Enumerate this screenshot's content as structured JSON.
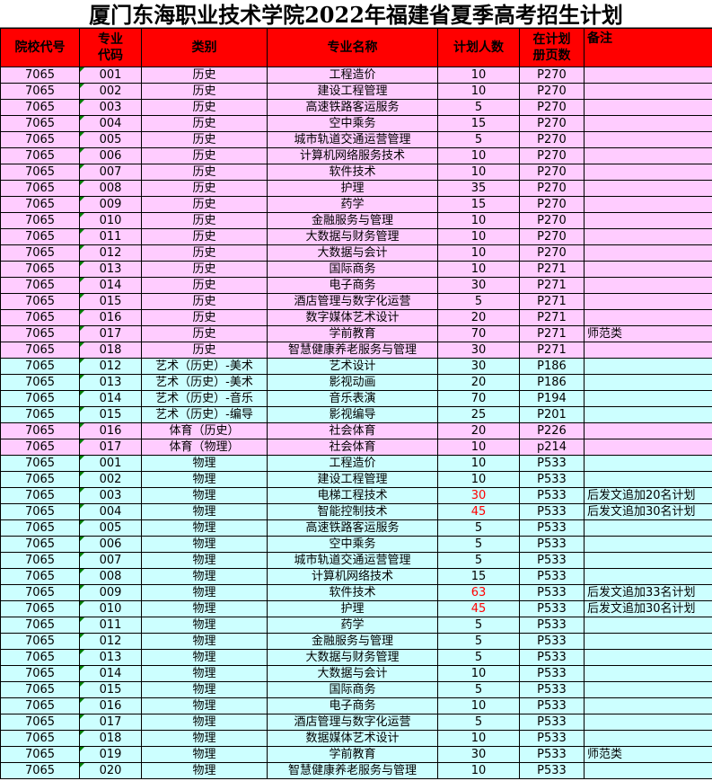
{
  "title": "厦门东海职业技术学院2022年福建省夏季高考招生计划",
  "headers": [
    "院校代号",
    "专业代码",
    "类别",
    "专业名称",
    "计划人数",
    "在计划册页数",
    "备注"
  ],
  "colors": {
    "header": "#ff0000",
    "pink": "#ffccff",
    "cyan": "#ccffff",
    "highlight_text": "#ff0000"
  },
  "rows": [
    [
      "7065",
      "001",
      "历史",
      "工程造价",
      "10",
      "P270",
      "",
      "pink",
      false
    ],
    [
      "7065",
      "002",
      "历史",
      "建设工程管理",
      "10",
      "P270",
      "",
      "pink",
      false
    ],
    [
      "7065",
      "003",
      "历史",
      "高速铁路客运服务",
      "5",
      "P270",
      "",
      "pink",
      false
    ],
    [
      "7065",
      "004",
      "历史",
      "空中乘务",
      "15",
      "P270",
      "",
      "pink",
      false
    ],
    [
      "7065",
      "005",
      "历史",
      "城市轨道交通运营管理",
      "5",
      "P270",
      "",
      "pink",
      false
    ],
    [
      "7065",
      "006",
      "历史",
      "计算机网络服务技术",
      "10",
      "P270",
      "",
      "pink",
      false
    ],
    [
      "7065",
      "007",
      "历史",
      "软件技术",
      "10",
      "P270",
      "",
      "pink",
      false
    ],
    [
      "7065",
      "008",
      "历史",
      "护理",
      "35",
      "P270",
      "",
      "pink",
      false
    ],
    [
      "7065",
      "009",
      "历史",
      "药学",
      "15",
      "P270",
      "",
      "pink",
      false
    ],
    [
      "7065",
      "010",
      "历史",
      "金融服务与管理",
      "10",
      "P270",
      "",
      "pink",
      false
    ],
    [
      "7065",
      "011",
      "历史",
      "大数据与财务管理",
      "10",
      "P270",
      "",
      "pink",
      false
    ],
    [
      "7065",
      "012",
      "历史",
      "大数据与会计",
      "10",
      "P270",
      "",
      "pink",
      false
    ],
    [
      "7065",
      "013",
      "历史",
      "国际商务",
      "10",
      "P271",
      "",
      "pink",
      false
    ],
    [
      "7065",
      "014",
      "历史",
      "电子商务",
      "30",
      "P271",
      "",
      "pink",
      false
    ],
    [
      "7065",
      "015",
      "历史",
      "酒店管理与数字化运营",
      "5",
      "P271",
      "",
      "pink",
      false
    ],
    [
      "7065",
      "016",
      "历史",
      "数字媒体艺术设计",
      "20",
      "P271",
      "",
      "pink",
      false
    ],
    [
      "7065",
      "017",
      "历史",
      "学前教育",
      "70",
      "P271",
      "师范类",
      "pink",
      false
    ],
    [
      "7065",
      "018",
      "历史",
      "智慧健康养老服务与管理",
      "30",
      "P271",
      "",
      "pink",
      false
    ],
    [
      "7065",
      "012",
      "艺术（历史）-美术",
      "艺术设计",
      "30",
      "P186",
      "",
      "cyan",
      false
    ],
    [
      "7065",
      "013",
      "艺术（历史）-美术",
      "影视动画",
      "20",
      "P186",
      "",
      "cyan",
      false
    ],
    [
      "7065",
      "014",
      "艺术（历史）-音乐",
      "音乐表演",
      "70",
      "P194",
      "",
      "cyan",
      false
    ],
    [
      "7065",
      "015",
      "艺术（历史）-编导",
      "影视编导",
      "25",
      "P201",
      "",
      "cyan",
      false
    ],
    [
      "7065",
      "016",
      "体育（历史）",
      "社会体育",
      "20",
      "P226",
      "",
      "pink",
      false
    ],
    [
      "7065",
      "017",
      "体育（物理）",
      "社会体育",
      "10",
      "p214",
      "",
      "pink",
      false
    ],
    [
      "7065",
      "001",
      "物理",
      "工程造价",
      "10",
      "P533",
      "",
      "cyan",
      false
    ],
    [
      "7065",
      "002",
      "物理",
      "建设工程管理",
      "10",
      "P533",
      "",
      "cyan",
      false
    ],
    [
      "7065",
      "003",
      "物理",
      "电梯工程技术",
      "30",
      "P533",
      "后发文追加20名计划",
      "cyan",
      true
    ],
    [
      "7065",
      "004",
      "物理",
      "智能控制技术",
      "45",
      "P533",
      "后发文追加30名计划",
      "cyan",
      true
    ],
    [
      "7065",
      "005",
      "物理",
      "高速铁路客运服务",
      "5",
      "P533",
      "",
      "cyan",
      false
    ],
    [
      "7065",
      "006",
      "物理",
      "空中乘务",
      "5",
      "P533",
      "",
      "cyan",
      false
    ],
    [
      "7065",
      "007",
      "物理",
      "城市轨道交通运营管理",
      "5",
      "P533",
      "",
      "cyan",
      false
    ],
    [
      "7065",
      "008",
      "物理",
      "计算机网络技术",
      "15",
      "P533",
      "",
      "cyan",
      false
    ],
    [
      "7065",
      "009",
      "物理",
      "软件技术",
      "63",
      "P533",
      "后发文追加33名计划",
      "cyan",
      true
    ],
    [
      "7065",
      "010",
      "物理",
      "护理",
      "45",
      "P533",
      "后发文追加30名计划",
      "cyan",
      true
    ],
    [
      "7065",
      "011",
      "物理",
      "药学",
      "5",
      "P533",
      "",
      "cyan",
      false
    ],
    [
      "7065",
      "012",
      "物理",
      "金融服务与管理",
      "5",
      "P533",
      "",
      "cyan",
      false
    ],
    [
      "7065",
      "013",
      "物理",
      "大数据与财务管理",
      "5",
      "P533",
      "",
      "cyan",
      false
    ],
    [
      "7065",
      "014",
      "物理",
      "大数据与会计",
      "10",
      "P533",
      "",
      "cyan",
      false
    ],
    [
      "7065",
      "015",
      "物理",
      "国际商务",
      "5",
      "P533",
      "",
      "cyan",
      false
    ],
    [
      "7065",
      "016",
      "物理",
      "电子商务",
      "10",
      "P533",
      "",
      "cyan",
      false
    ],
    [
      "7065",
      "017",
      "物理",
      "酒店管理与数字化运营",
      "5",
      "P533",
      "",
      "cyan",
      false
    ],
    [
      "7065",
      "018",
      "物理",
      "数据媒体艺术设计",
      "10",
      "P533",
      "",
      "cyan",
      false
    ],
    [
      "7065",
      "019",
      "物理",
      "学前教育",
      "30",
      "P533",
      "师范类",
      "cyan",
      false
    ],
    [
      "7065",
      "020",
      "物理",
      "智慧健康养老服务与管理",
      "10",
      "P533",
      "",
      "cyan",
      false
    ]
  ]
}
